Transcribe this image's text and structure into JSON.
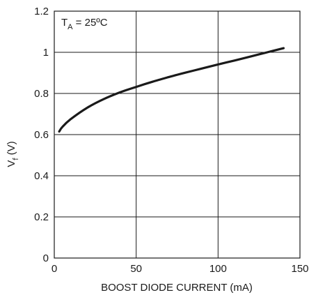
{
  "chart_data": {
    "type": "line",
    "xlabel": "BOOST DIODE CURRENT (mA)",
    "ylabel": "Vf (V)",
    "ylabel_main": "V",
    "ylabel_sub": "f",
    "ylabel_unit": " (V)",
    "annotation": "TA = 25ºC",
    "annotation_main": "T",
    "annotation_sub": "A",
    "annotation_rest": " = 25ºC",
    "xlim": [
      0,
      150
    ],
    "ylim": [
      0,
      1.2
    ],
    "xticks": [
      0,
      50,
      100,
      150
    ],
    "xtick_labels": [
      "0",
      "50",
      "100",
      "150"
    ],
    "yticks": [
      0,
      0.2,
      0.4,
      0.6,
      0.8,
      1.0,
      1.2
    ],
    "ytick_labels": [
      "0",
      "0.2",
      "0.4",
      "0.6",
      "0.8",
      "1",
      "1.2"
    ],
    "grid": true,
    "series": [
      {
        "color": "#1a1a1a",
        "x": [
          3,
          5,
          10,
          20,
          30,
          40,
          50,
          60,
          70,
          80,
          90,
          100,
          110,
          120,
          130,
          140
        ],
        "y": [
          0.615,
          0.638,
          0.675,
          0.73,
          0.772,
          0.805,
          0.832,
          0.857,
          0.88,
          0.901,
          0.921,
          0.941,
          0.96,
          0.98,
          1.0,
          1.02
        ]
      }
    ]
  }
}
